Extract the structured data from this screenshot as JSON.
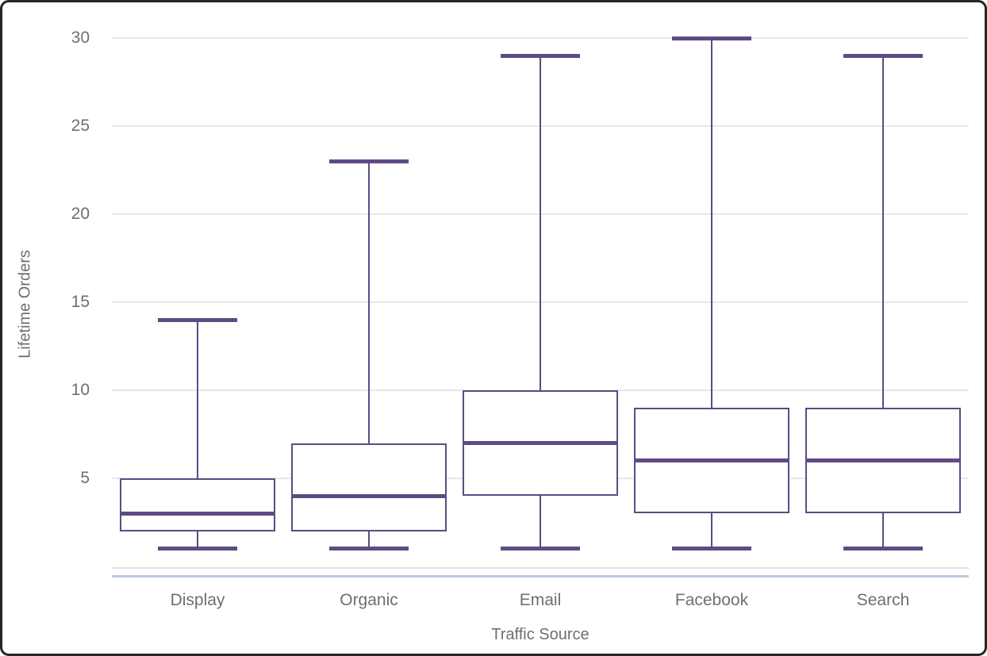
{
  "chart_data": {
    "type": "boxplot",
    "title": "",
    "xlabel": "Traffic Source",
    "ylabel": "Lifetime Orders",
    "categories": [
      "Display",
      "Organic",
      "Email",
      "Facebook",
      "Search"
    ],
    "series": [
      {
        "name": "Display",
        "min": 1,
        "q1": 2,
        "median": 3,
        "q3": 5,
        "max": 14
      },
      {
        "name": "Organic",
        "min": 1,
        "q1": 2,
        "median": 4,
        "q3": 7,
        "max": 23
      },
      {
        "name": "Email",
        "min": 1,
        "q1": 4,
        "median": 7,
        "q3": 10,
        "max": 29
      },
      {
        "name": "Facebook",
        "min": 1,
        "q1": 3,
        "median": 6,
        "q3": 9,
        "max": 30
      },
      {
        "name": "Search",
        "min": 1,
        "q1": 3,
        "median": 6,
        "q3": 9,
        "max": 29
      }
    ],
    "ylim": [
      0,
      30
    ],
    "yticks": [
      5,
      10,
      15,
      20,
      25,
      30
    ],
    "grid": true,
    "legend": "none",
    "colors": {
      "box": "#5e4b85",
      "gridline": "#e7e7e7",
      "zero_line": "#e2e2e2",
      "axis_line": "#b9c8e2",
      "text": "#6f6f6f",
      "frame_border": "#222728"
    }
  }
}
